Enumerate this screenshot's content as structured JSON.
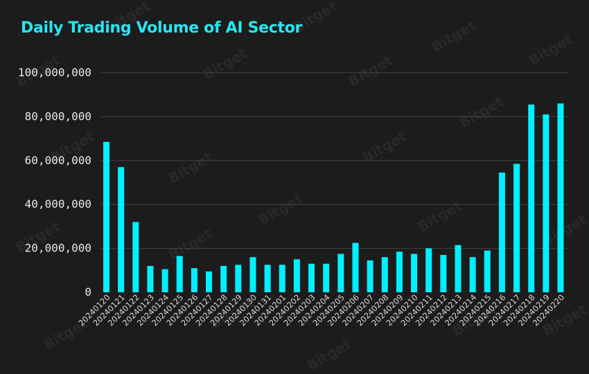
{
  "chart_data": {
    "type": "bar",
    "title": "Daily Trading Volume of AI Sector",
    "xlabel": "",
    "ylabel": "",
    "ylim": [
      0,
      100000000
    ],
    "yticks": [
      0,
      20000000,
      40000000,
      60000000,
      80000000,
      100000000
    ],
    "ytick_labels": [
      "0",
      "20,000,000",
      "40,000,000",
      "60,000,000",
      "80,000,000",
      "100,000,000"
    ],
    "grid": true,
    "bar_color": "#00f0ff",
    "categories": [
      "20240120",
      "20240121",
      "20240122",
      "20240123",
      "20240124",
      "20240125",
      "20240126",
      "20240127",
      "20240128",
      "20240129",
      "20240130",
      "20240131",
      "20240201",
      "20240202",
      "20240203",
      "20240204",
      "20240205",
      "20240206",
      "20240207",
      "20240208",
      "20240209",
      "20240210",
      "20240211",
      "20240212",
      "20240213",
      "20240214",
      "20240215",
      "20240216",
      "20240217",
      "20240218",
      "20240219",
      "20240220"
    ],
    "values": [
      68500000,
      57000000,
      32000000,
      12000000,
      10500000,
      16500000,
      11000000,
      9500000,
      12000000,
      12500000,
      16000000,
      12500000,
      12500000,
      15000000,
      13000000,
      13000000,
      17500000,
      22500000,
      14500000,
      16000000,
      18500000,
      17500000,
      20000000,
      17000000,
      21500000,
      16000000,
      19000000,
      54500000,
      58500000,
      85500000,
      81000000,
      86000000
    ]
  },
  "watermark": "Bitget",
  "colors": {
    "background": "#1c1c1d",
    "title": "#27e6f0",
    "bar": "#00f0ff",
    "grid": "#444444"
  }
}
